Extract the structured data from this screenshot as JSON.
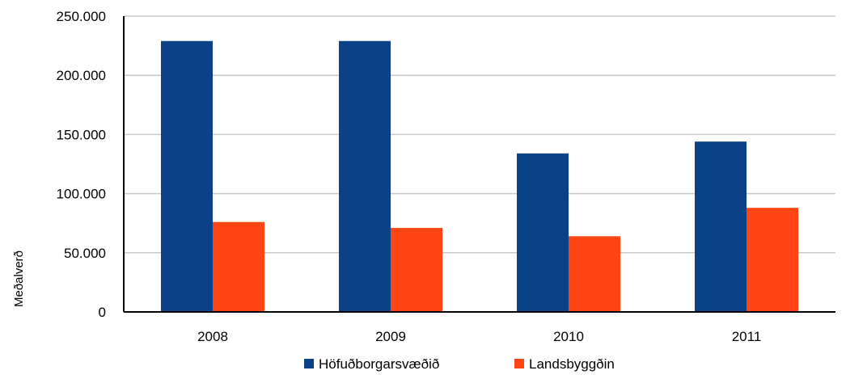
{
  "chart_data": {
    "type": "bar",
    "title": "",
    "xlabel": "",
    "ylabel": "Meðalverð",
    "categories": [
      "2008",
      "2009",
      "2010",
      "2011"
    ],
    "series": [
      {
        "name": "Höfuðborgarsvæðið",
        "color": "#0b4187",
        "values": [
          229000,
          229000,
          134000,
          144000
        ]
      },
      {
        "name": "Landsbyggðin",
        "color": "#fe4513",
        "values": [
          76000,
          71000,
          64000,
          88000
        ]
      }
    ],
    "ylim": [
      0,
      250000
    ],
    "yticks": [
      0,
      50000,
      100000,
      150000,
      200000,
      250000
    ],
    "ytick_labels": [
      "0",
      "50.000",
      "100.000",
      "150.000",
      "200.000",
      "250.000"
    ],
    "grid": true,
    "legend_position": "bottom"
  }
}
